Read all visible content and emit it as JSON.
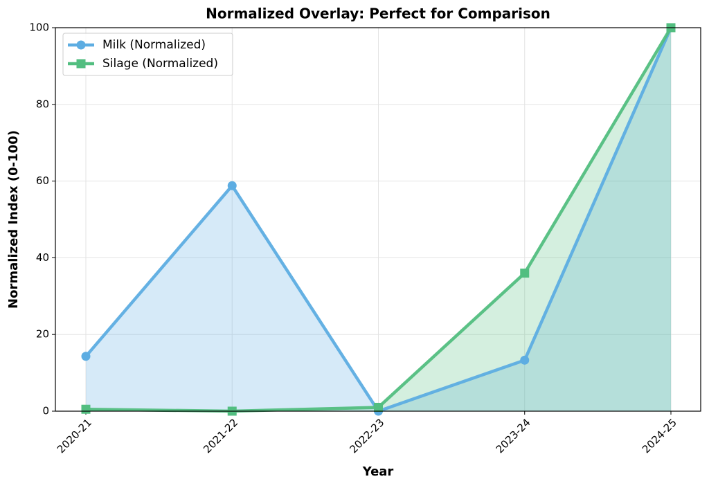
{
  "chart_data": {
    "type": "line",
    "title": "Normalized Overlay: Perfect for Comparison",
    "x_label": "Year",
    "y_label": "Normalized Index (0-100)",
    "categories": [
      "2020-21",
      "2021-22",
      "2022-23",
      "2023-24",
      "2024-25"
    ],
    "series": [
      {
        "name": "Milk (Normalized)",
        "color": "#5dade2",
        "marker": "circle",
        "values": [
          14.3,
          58.8,
          0,
          13.3,
          100
        ]
      },
      {
        "name": "Silage (Normalized)",
        "color": "#52be80",
        "marker": "square",
        "values": [
          0.5,
          0,
          1,
          36,
          100
        ]
      }
    ],
    "ylim": [
      0,
      100
    ],
    "yticks": [
      0,
      20,
      40,
      60,
      80,
      100
    ],
    "grid": true,
    "fill_area": true,
    "legend": "upper left"
  }
}
